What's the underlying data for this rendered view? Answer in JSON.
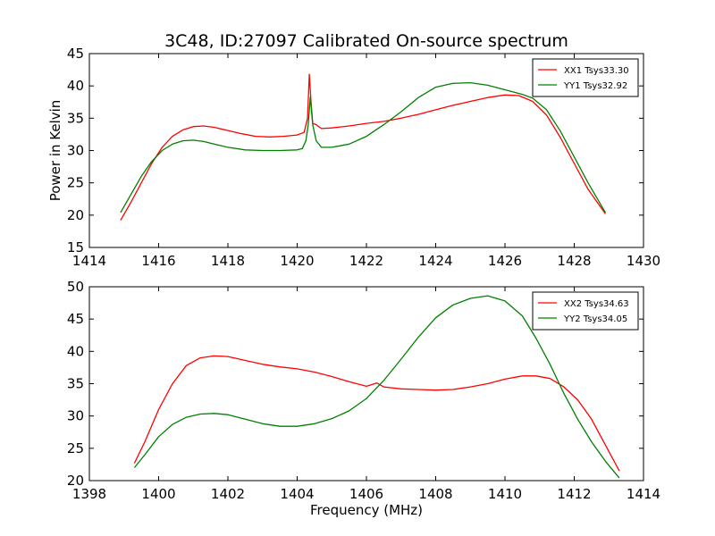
{
  "chart_data": [
    {
      "type": "line",
      "title": "3C48, ID:27097 Calibrated On-source spectrum",
      "xlabel": "",
      "ylabel": "Power in Kelvin",
      "xlim": [
        1414,
        1430
      ],
      "ylim": [
        15,
        45
      ],
      "xticks": [
        1414,
        1416,
        1418,
        1420,
        1422,
        1424,
        1426,
        1428,
        1430
      ],
      "yticks": [
        15,
        20,
        25,
        30,
        35,
        40,
        45
      ],
      "grid": false,
      "legend_position": "top-right",
      "series": [
        {
          "name": "XX1 Tsys33.30",
          "color": "#ff0000",
          "x": [
            1414.9,
            1415.2,
            1415.5,
            1415.8,
            1416.1,
            1416.4,
            1416.7,
            1417.0,
            1417.3,
            1417.6,
            1418.0,
            1418.4,
            1418.8,
            1419.2,
            1419.6,
            1420.0,
            1420.2,
            1420.3,
            1420.35,
            1420.4,
            1420.45,
            1420.55,
            1420.7,
            1421.0,
            1421.5,
            1422.0,
            1422.5,
            1423.0,
            1423.5,
            1424.0,
            1424.5,
            1425.0,
            1425.5,
            1426.0,
            1426.4,
            1426.8,
            1427.2,
            1427.6,
            1428.0,
            1428.4,
            1428.9
          ],
          "values": [
            19.2,
            22.0,
            25.0,
            28.0,
            30.5,
            32.2,
            33.2,
            33.7,
            33.8,
            33.6,
            33.1,
            32.6,
            32.2,
            32.1,
            32.2,
            32.4,
            32.8,
            35.0,
            41.8,
            37.5,
            34.2,
            34.0,
            33.4,
            33.5,
            33.8,
            34.2,
            34.5,
            35.0,
            35.6,
            36.3,
            37.0,
            37.6,
            38.2,
            38.6,
            38.5,
            37.6,
            35.5,
            32.0,
            28.0,
            24.0,
            20.2
          ]
        },
        {
          "name": "YY1 Tsys32.92",
          "color": "#008000",
          "x": [
            1414.9,
            1415.2,
            1415.5,
            1415.8,
            1416.1,
            1416.4,
            1416.7,
            1417.0,
            1417.3,
            1417.6,
            1418.0,
            1418.5,
            1419.0,
            1419.5,
            1420.0,
            1420.15,
            1420.25,
            1420.32,
            1420.38,
            1420.45,
            1420.55,
            1420.7,
            1421.0,
            1421.5,
            1422.0,
            1422.5,
            1423.0,
            1423.5,
            1424.0,
            1424.5,
            1425.0,
            1425.5,
            1426.0,
            1426.5,
            1426.8,
            1427.2,
            1427.6,
            1428.0,
            1428.4,
            1428.9
          ],
          "values": [
            20.4,
            23.2,
            26.0,
            28.3,
            30.0,
            31.0,
            31.5,
            31.6,
            31.4,
            31.0,
            30.5,
            30.1,
            30.0,
            30.0,
            30.1,
            30.3,
            31.5,
            34.0,
            38.3,
            34.0,
            31.5,
            30.5,
            30.5,
            31.0,
            32.2,
            34.0,
            36.0,
            38.2,
            39.8,
            40.4,
            40.5,
            40.1,
            39.4,
            38.7,
            38.1,
            36.3,
            33.0,
            29.0,
            25.0,
            20.4
          ]
        }
      ]
    },
    {
      "type": "line",
      "title": "",
      "xlabel": "Frequency (MHz)",
      "ylabel": "",
      "xlim": [
        1398,
        1414
      ],
      "ylim": [
        20,
        50
      ],
      "xticks": [
        1398,
        1400,
        1402,
        1404,
        1406,
        1408,
        1410,
        1412,
        1414
      ],
      "yticks": [
        20,
        25,
        30,
        35,
        40,
        45,
        50
      ],
      "grid": false,
      "legend_position": "top-right",
      "series": [
        {
          "name": "XX2 Tsys34.63",
          "color": "#ff0000",
          "x": [
            1399.3,
            1399.6,
            1400.0,
            1400.4,
            1400.8,
            1401.2,
            1401.6,
            1402.0,
            1402.5,
            1403.0,
            1403.5,
            1404.0,
            1404.5,
            1405.0,
            1405.5,
            1406.0,
            1406.3,
            1406.5,
            1407.0,
            1407.5,
            1408.0,
            1408.5,
            1409.0,
            1409.5,
            1410.0,
            1410.5,
            1410.9,
            1411.3,
            1411.7,
            1412.1,
            1412.5,
            1412.9,
            1413.3
          ],
          "values": [
            22.7,
            26.0,
            31.0,
            35.0,
            37.8,
            39.0,
            39.3,
            39.2,
            38.6,
            38.0,
            37.6,
            37.3,
            36.8,
            36.1,
            35.3,
            34.6,
            35.1,
            34.5,
            34.2,
            34.1,
            34.0,
            34.1,
            34.5,
            35.0,
            35.7,
            36.2,
            36.2,
            35.8,
            34.5,
            32.5,
            29.5,
            25.5,
            21.5
          ]
        },
        {
          "name": "YY2 Tsys34.05",
          "color": "#008000",
          "x": [
            1399.3,
            1399.6,
            1400.0,
            1400.4,
            1400.8,
            1401.2,
            1401.6,
            1402.0,
            1402.5,
            1403.0,
            1403.5,
            1404.0,
            1404.5,
            1405.0,
            1405.5,
            1406.0,
            1406.5,
            1407.0,
            1407.5,
            1408.0,
            1408.5,
            1409.0,
            1409.5,
            1410.0,
            1410.5,
            1410.9,
            1411.3,
            1411.7,
            1412.1,
            1412.5,
            1412.9,
            1413.3
          ],
          "values": [
            22.0,
            24.0,
            26.8,
            28.7,
            29.8,
            30.3,
            30.4,
            30.2,
            29.5,
            28.8,
            28.4,
            28.4,
            28.8,
            29.6,
            30.8,
            32.7,
            35.5,
            38.8,
            42.2,
            45.2,
            47.2,
            48.2,
            48.6,
            47.8,
            45.5,
            42.0,
            38.0,
            33.5,
            29.5,
            26.0,
            23.0,
            20.4
          ]
        }
      ]
    }
  ]
}
